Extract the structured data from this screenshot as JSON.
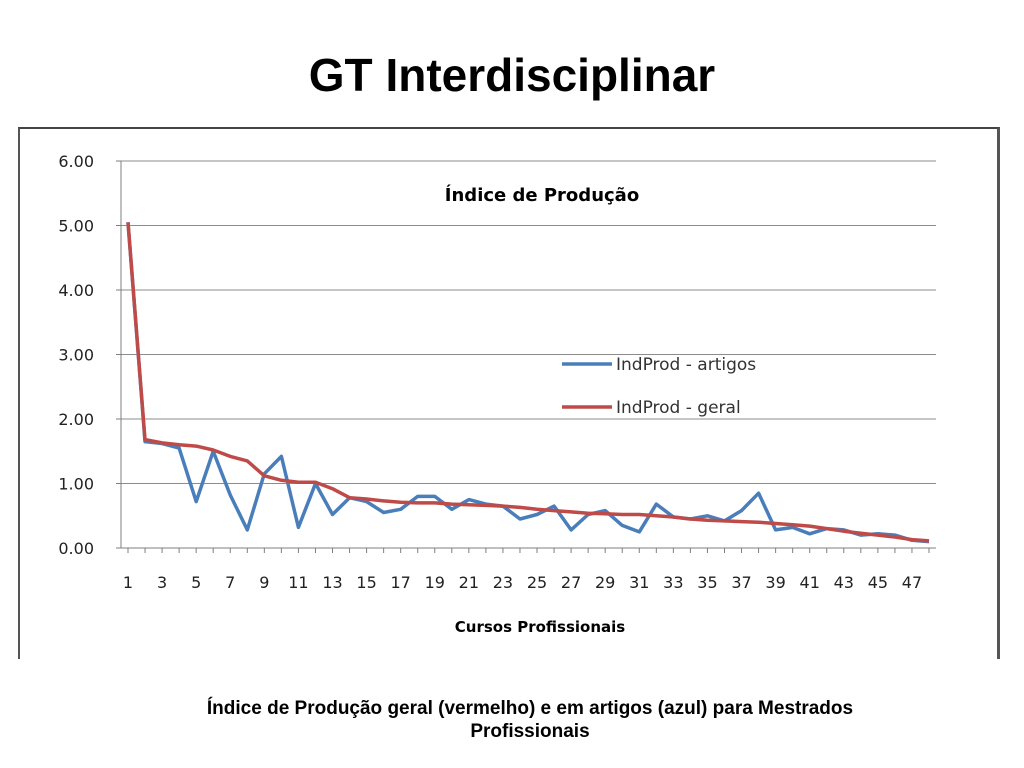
{
  "slide": {
    "title": "GT Interdisciplinar",
    "caption_line1": "Índice de Produção geral (vermelho) e em artigos (azul) para Mestrados",
    "caption_line2": "Profissionais"
  },
  "colors": {
    "series_artigos": "#4a7ebb",
    "series_geral": "#be4b48",
    "grid": "#8c8c8c",
    "axis": "#7f7f7f"
  },
  "chart_data": {
    "type": "line",
    "title": "Índice de Produção",
    "xlabel": "Cursos Profissionais",
    "ylabel": "",
    "ylim": [
      0,
      6
    ],
    "yticks": [
      "0.00",
      "1.00",
      "2.00",
      "3.00",
      "4.00",
      "5.00",
      "6.00"
    ],
    "xticks_shown": [
      "1",
      "3",
      "5",
      "7",
      "9",
      "11",
      "13",
      "15",
      "17",
      "19",
      "21",
      "23",
      "25",
      "27",
      "29",
      "31",
      "33",
      "35",
      "37",
      "39",
      "41",
      "43",
      "45",
      "47"
    ],
    "grid": "horizontal",
    "legend_position": "center-right",
    "x": [
      1,
      2,
      3,
      4,
      5,
      6,
      7,
      8,
      9,
      10,
      11,
      12,
      13,
      14,
      15,
      16,
      17,
      18,
      19,
      20,
      21,
      22,
      23,
      24,
      25,
      26,
      27,
      28,
      29,
      30,
      31,
      32,
      33,
      34,
      35,
      36,
      37,
      38,
      39,
      40,
      41,
      42,
      43,
      44,
      45,
      46,
      47,
      48
    ],
    "series": [
      {
        "name": "IndProd - artigos",
        "values": [
          5.05,
          1.65,
          1.62,
          1.55,
          0.72,
          1.5,
          0.82,
          0.28,
          1.15,
          1.42,
          0.32,
          1.0,
          0.52,
          0.78,
          0.72,
          0.55,
          0.6,
          0.8,
          0.8,
          0.6,
          0.75,
          0.68,
          0.65,
          0.45,
          0.52,
          0.65,
          0.28,
          0.52,
          0.58,
          0.35,
          0.25,
          0.68,
          0.48,
          0.45,
          0.5,
          0.42,
          0.58,
          0.85,
          0.28,
          0.32,
          0.22,
          0.3,
          0.28,
          0.2,
          0.22,
          0.2,
          0.12,
          0.1
        ]
      },
      {
        "name": "IndProd - geral",
        "values": [
          5.05,
          1.68,
          1.63,
          1.6,
          1.58,
          1.52,
          1.42,
          1.35,
          1.12,
          1.05,
          1.02,
          1.02,
          0.92,
          0.78,
          0.76,
          0.73,
          0.71,
          0.7,
          0.7,
          0.68,
          0.67,
          0.66,
          0.65,
          0.63,
          0.6,
          0.58,
          0.56,
          0.54,
          0.53,
          0.52,
          0.52,
          0.5,
          0.48,
          0.45,
          0.43,
          0.42,
          0.41,
          0.4,
          0.38,
          0.36,
          0.34,
          0.3,
          0.26,
          0.23,
          0.2,
          0.17,
          0.13,
          0.11
        ]
      }
    ]
  }
}
